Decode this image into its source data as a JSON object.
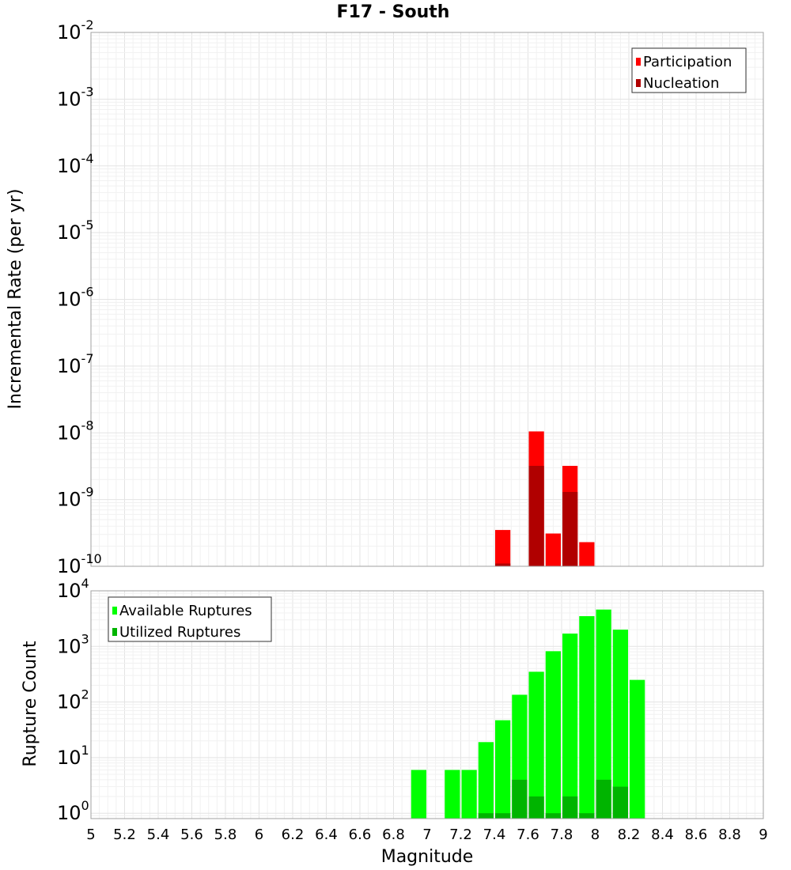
{
  "chart_data": [
    {
      "type": "bar",
      "title": "F17 - South",
      "xlabel": "",
      "ylabel": "Incremental Rate (per yr)",
      "y_scale": "log",
      "ylim": [
        1e-10,
        0.01
      ],
      "xlim": [
        5,
        9
      ],
      "y_tick_exponents": [
        "-10",
        "-9",
        "-8",
        "-7",
        "-6",
        "-5",
        "-4",
        "-3",
        "-2"
      ],
      "legend": [
        "Participation",
        "Nucleation"
      ],
      "legend_position": "top-right",
      "grid": true,
      "series": [
        {
          "name": "Participation",
          "color": "#ff0000",
          "x": [
            7.45,
            7.65,
            7.75,
            7.85,
            7.95
          ],
          "values": [
            3.5e-10,
            1.05e-08,
            3.1e-10,
            3.2e-09,
            2.3e-10
          ]
        },
        {
          "name": "Nucleation",
          "color": "#b00000",
          "x": [
            7.45,
            7.65,
            7.85
          ],
          "values": [
            1.1e-10,
            3.2e-09,
            1.3e-09
          ]
        }
      ]
    },
    {
      "type": "bar",
      "title": "",
      "xlabel": "Magnitude",
      "ylabel": "Rupture Count",
      "y_scale": "log",
      "ylim": [
        0.8,
        10000
      ],
      "xlim": [
        5,
        9
      ],
      "y_tick_exponents": [
        "0",
        "1",
        "2",
        "3",
        "4"
      ],
      "legend": [
        "Available Ruptures",
        "Utilized Ruptures"
      ],
      "legend_position": "top-left",
      "grid": true,
      "x_ticks": [
        "5",
        "5.2",
        "5.4",
        "5.6",
        "5.8",
        "6",
        "6.2",
        "6.4",
        "6.6",
        "6.8",
        "7",
        "7.2",
        "7.4",
        "7.6",
        "7.8",
        "8",
        "8.2",
        "8.4",
        "8.6",
        "8.8",
        "9"
      ],
      "series": [
        {
          "name": "Available Ruptures",
          "color": "#00ff00",
          "x": [
            6.95,
            7.15,
            7.25,
            7.35,
            7.45,
            7.55,
            7.65,
            7.75,
            7.85,
            7.95,
            8.05,
            8.15,
            8.25
          ],
          "values": [
            6,
            6,
            6,
            19,
            47,
            135,
            350,
            820,
            1700,
            3500,
            4600,
            2000,
            250
          ]
        },
        {
          "name": "Utilized Ruptures",
          "color": "#00b400",
          "x": [
            7.35,
            7.45,
            7.55,
            7.65,
            7.75,
            7.85,
            7.95,
            8.05,
            8.15
          ],
          "values": [
            1,
            1,
            4,
            2,
            1,
            2,
            1,
            4,
            3
          ]
        }
      ]
    }
  ]
}
